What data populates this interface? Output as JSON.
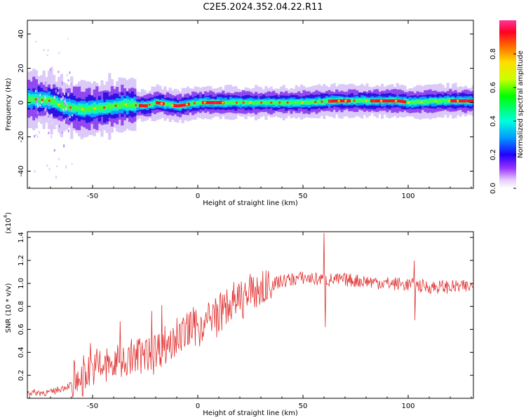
{
  "title": "C2E5.2024.352.04.22.R11",
  "chart_data": [
    {
      "type": "heatmap",
      "xlabel": "Height of straight line (km)",
      "ylabel": "Frequency (Hz)",
      "xlim": [
        -81,
        131
      ],
      "ylim": [
        -50,
        48
      ],
      "xticks": [
        -50,
        0,
        50,
        100
      ],
      "yticks": [
        -40,
        -20,
        0,
        20,
        40
      ],
      "colorbar": {
        "label": "Normalized spectral amplitude",
        "range": [
          0,
          1
        ],
        "ticks": [
          0.0,
          0.2,
          0.4,
          0.6,
          0.8
        ],
        "colors": [
          "#ffffff",
          "#cc99ff",
          "#6600ff",
          "#0000ff",
          "#00bfff",
          "#00ffcc",
          "#00ff00",
          "#ccff00",
          "#ffff00",
          "#ff8800",
          "#ff0000",
          "#ff33aa"
        ]
      },
      "ridge_frequency": [
        {
          "x": -78,
          "y": 2
        },
        {
          "x": -70,
          "y": 1
        },
        {
          "x": -65,
          "y": -2
        },
        {
          "x": -55,
          "y": -4
        },
        {
          "x": -45,
          "y": -3
        },
        {
          "x": -35,
          "y": -1
        },
        {
          "x": -25,
          "y": -2
        },
        {
          "x": -20,
          "y": 0
        },
        {
          "x": -10,
          "y": -2
        },
        {
          "x": 0,
          "y": 0
        },
        {
          "x": 20,
          "y": 0
        },
        {
          "x": 50,
          "y": 0
        },
        {
          "x": 65,
          "y": 1
        },
        {
          "x": 80,
          "y": 1
        },
        {
          "x": 95,
          "y": 1
        },
        {
          "x": 100,
          "y": 0
        },
        {
          "x": 115,
          "y": 1
        },
        {
          "x": 131,
          "y": 1
        }
      ],
      "peak_amplitude_regions": [
        {
          "x_start": -28,
          "x_end": -24,
          "level": 0.95
        },
        {
          "x_start": -20,
          "x_end": -16,
          "level": 0.95
        },
        {
          "x_start": -12,
          "x_end": -4,
          "level": 0.9
        },
        {
          "x_start": 2,
          "x_end": 12,
          "level": 0.9
        },
        {
          "x_start": 62,
          "x_end": 72,
          "level": 0.85
        },
        {
          "x_start": 82,
          "x_end": 98,
          "level": 1.0
        },
        {
          "x_start": 120,
          "x_end": 131,
          "level": 0.9
        }
      ]
    },
    {
      "type": "line",
      "xlabel": "Height of straight line (km)",
      "ylabel": "SNR (10 * v/v)",
      "y_multiplier": "(x10",
      "y_multiplier_exp": "4",
      "xlim": [
        -81,
        131
      ],
      "ylim": [
        0,
        1.45
      ],
      "xticks": [
        -50,
        0,
        50,
        100
      ],
      "yticks": [
        0.2,
        0.4,
        0.6,
        0.8,
        1.0,
        1.2,
        1.4
      ],
      "series": [
        {
          "color": "#e03030",
          "trend": [
            {
              "x": -81,
              "y": 0.05
            },
            {
              "x": -70,
              "y": 0.05
            },
            {
              "x": -60,
              "y": 0.12
            },
            {
              "x": -50,
              "y": 0.25
            },
            {
              "x": -40,
              "y": 0.3
            },
            {
              "x": -30,
              "y": 0.36
            },
            {
              "x": -20,
              "y": 0.42
            },
            {
              "x": -10,
              "y": 0.52
            },
            {
              "x": 0,
              "y": 0.62
            },
            {
              "x": 10,
              "y": 0.74
            },
            {
              "x": 20,
              "y": 0.86
            },
            {
              "x": 30,
              "y": 0.95
            },
            {
              "x": 40,
              "y": 1.02
            },
            {
              "x": 50,
              "y": 1.05
            },
            {
              "x": 60,
              "y": 1.03
            },
            {
              "x": 70,
              "y": 1.03
            },
            {
              "x": 80,
              "y": 1.02
            },
            {
              "x": 90,
              "y": 1.0
            },
            {
              "x": 100,
              "y": 0.99
            },
            {
              "x": 110,
              "y": 0.97
            },
            {
              "x": 120,
              "y": 0.97
            },
            {
              "x": 131,
              "y": 0.97
            }
          ],
          "spikes": [
            {
              "x": -51,
              "y": 0.48
            },
            {
              "x": -37,
              "y": 0.67
            },
            {
              "x": -22,
              "y": 0.76
            },
            {
              "x": -17,
              "y": 0.81
            },
            {
              "x": -10,
              "y": 0.7
            },
            {
              "x": 60,
              "y": 1.44
            },
            {
              "x": 60.5,
              "y": 0.62
            },
            {
              "x": 103,
              "y": 1.2
            },
            {
              "x": 103.3,
              "y": 0.68
            }
          ]
        }
      ]
    }
  ]
}
